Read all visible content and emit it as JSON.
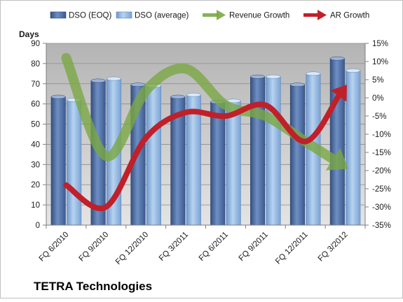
{
  "chart_data": {
    "type": "bar",
    "title": "TETRA Technologies",
    "ylabel": "Days",
    "categories": [
      "FQ 6/2010",
      "FQ 9/2010",
      "FQ 12/2010",
      "FQ 3/2011",
      "FQ 6/2011",
      "FQ 9/2011",
      "FQ 12/2011",
      "FQ 3/2012"
    ],
    "y_left_ticks": [
      "0",
      "10",
      "20",
      "30",
      "40",
      "50",
      "60",
      "70",
      "80",
      "90"
    ],
    "y_left_lim": [
      0,
      90
    ],
    "y_right_ticks": [
      "15%",
      "10%",
      "5%",
      "0%",
      "-5%",
      "-10%",
      "-15%",
      "-20%",
      "-25%",
      "-30%",
      "-35%"
    ],
    "y_right_lim": [
      -35,
      15
    ],
    "legend_position": "top",
    "grid": true,
    "series": [
      {
        "name": "DSO (EOQ)",
        "kind": "bar",
        "axis": "left",
        "color": "#4f6fa5",
        "values": [
          63.5,
          71.5,
          69.5,
          63.5,
          61,
          73.5,
          69.5,
          82.5
        ]
      },
      {
        "name": "DSO (average)",
        "kind": "bar",
        "axis": "left",
        "color": "#8fb3dd",
        "values": [
          62,
          72.5,
          69,
          64.5,
          61.5,
          73.5,
          75,
          76.5
        ]
      },
      {
        "name": "Revenue Growth",
        "kind": "line",
        "axis": "right",
        "color": "#7aa843",
        "values": [
          11,
          -16,
          2,
          8,
          -2,
          -5,
          -12,
          -19
        ]
      },
      {
        "name": "AR Growth",
        "kind": "line",
        "axis": "right",
        "color": "#c0202a",
        "values": [
          -24,
          -30,
          -11,
          -4,
          -5,
          -2,
          -12,
          3
        ]
      }
    ]
  }
}
